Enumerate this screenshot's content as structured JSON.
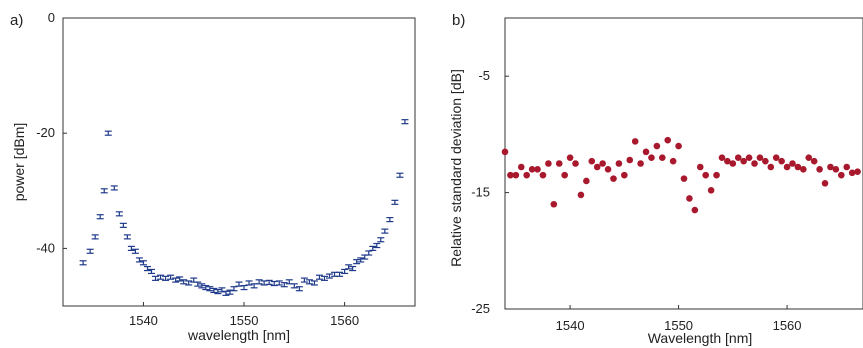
{
  "chart_data": [
    {
      "panel_label": "a)",
      "type": "scatter",
      "marker": "errorbar",
      "xlabel": "wavelength [nm]",
      "ylabel": "power [dBm]",
      "xlim": [
        1532,
        1567
      ],
      "ylim": [
        -50,
        0
      ],
      "xticks": [
        1540,
        1550,
        1560
      ],
      "yticks": [
        0,
        -20,
        -40
      ],
      "color": "#1f3a8a",
      "x": [
        1534.0,
        1534.7,
        1535.2,
        1535.7,
        1536.1,
        1536.5,
        1537.1,
        1537.6,
        1538.0,
        1538.4,
        1538.8,
        1539.2,
        1539.6,
        1540.0,
        1540.4,
        1540.8,
        1541.2,
        1541.7,
        1542.2,
        1542.7,
        1543.2,
        1543.6,
        1544.0,
        1544.5,
        1545.0,
        1545.4,
        1545.8,
        1546.2,
        1546.6,
        1547.0,
        1547.4,
        1547.8,
        1548.2,
        1548.6,
        1549.0,
        1549.5,
        1550.0,
        1550.5,
        1551.0,
        1551.5,
        1552.0,
        1552.5,
        1553.0,
        1553.5,
        1554.0,
        1554.5,
        1555.0,
        1555.5,
        1556.0,
        1556.5,
        1557.0,
        1557.5,
        1558.0,
        1558.5,
        1559.0,
        1559.5,
        1560.0,
        1560.4,
        1560.8,
        1561.2,
        1561.6,
        1562.0,
        1562.4,
        1562.8,
        1563.2,
        1563.6,
        1564.0,
        1564.5,
        1565.0,
        1565.5,
        1566.0
      ],
      "y": [
        -42.5,
        -40.5,
        -38.0,
        -34.5,
        -30.0,
        -20.0,
        -29.5,
        -34.0,
        -36.0,
        -38.0,
        -40.0,
        -40.5,
        -42.0,
        -42.5,
        -43.5,
        -44.0,
        -45.2,
        -45.0,
        -45.2,
        -45.0,
        -45.5,
        -45.3,
        -45.8,
        -46.0,
        -45.5,
        -46.2,
        -46.5,
        -46.8,
        -47.0,
        -47.3,
        -47.5,
        -47.2,
        -47.8,
        -47.6,
        -47.0,
        -46.2,
        -46.8,
        -46.0,
        -46.5,
        -45.8,
        -46.0,
        -45.9,
        -46.1,
        -46.0,
        -46.3,
        -45.8,
        -46.5,
        -47.0,
        -45.5,
        -45.8,
        -46.0,
        -45.0,
        -45.2,
        -44.8,
        -44.5,
        -44.5,
        -44.0,
        -43.2,
        -43.5,
        -42.3,
        -42.0,
        -41.5,
        -40.8,
        -40.0,
        -39.5,
        -38.5,
        -37.0,
        -35.0,
        -32.0,
        -27.3,
        -18.0
      ]
    },
    {
      "panel_label": "b)",
      "type": "scatter",
      "xlabel": "Wavelength [nm]",
      "ylabel": "Relative standard deviation [dB]",
      "xlim": [
        1534,
        1567
      ],
      "ylim": [
        -25,
        0
      ],
      "xticks": [
        1540,
        1550,
        1560
      ],
      "yticks": [
        -5,
        -15,
        -25
      ],
      "color": "#a8192e",
      "x": [
        1534.0,
        1534.5,
        1535.0,
        1535.5,
        1536.0,
        1536.5,
        1537.0,
        1537.5,
        1538.0,
        1538.5,
        1539.0,
        1539.5,
        1540.0,
        1540.5,
        1541.0,
        1541.5,
        1542.0,
        1542.5,
        1543.0,
        1543.5,
        1544.0,
        1544.5,
        1545.0,
        1545.5,
        1546.0,
        1546.5,
        1547.0,
        1547.5,
        1548.0,
        1548.5,
        1549.0,
        1549.5,
        1550.0,
        1550.5,
        1551.0,
        1551.5,
        1552.0,
        1552.5,
        1553.0,
        1553.5,
        1554.0,
        1554.5,
        1555.0,
        1555.5,
        1556.0,
        1556.5,
        1557.0,
        1557.5,
        1558.0,
        1558.5,
        1559.0,
        1559.5,
        1560.0,
        1560.5,
        1561.0,
        1561.5,
        1562.0,
        1562.5,
        1563.0,
        1563.5,
        1564.0,
        1564.5,
        1565.0,
        1565.5,
        1566.0,
        1566.5
      ],
      "y": [
        -11.5,
        -13.5,
        -13.5,
        -12.8,
        -13.5,
        -13.0,
        -13.0,
        -13.5,
        -12.5,
        -16.0,
        -12.5,
        -13.5,
        -12.0,
        -12.5,
        -15.2,
        -14.0,
        -12.3,
        -12.8,
        -12.5,
        -13.0,
        -13.8,
        -12.5,
        -13.5,
        -12.2,
        -10.6,
        -12.5,
        -11.5,
        -12.0,
        -11.0,
        -12.0,
        -10.5,
        -12.3,
        -11.0,
        -13.8,
        -15.5,
        -16.5,
        -12.8,
        -13.5,
        -14.8,
        -13.5,
        -12.0,
        -12.3,
        -12.5,
        -12.0,
        -12.3,
        -12.0,
        -12.5,
        -12.0,
        -12.3,
        -12.8,
        -12.0,
        -12.3,
        -12.8,
        -12.5,
        -12.8,
        -13.0,
        -12.0,
        -12.3,
        -13.0,
        -14.2,
        -12.8,
        -13.0,
        -13.5,
        -12.8,
        -13.3,
        -13.2
      ]
    }
  ]
}
